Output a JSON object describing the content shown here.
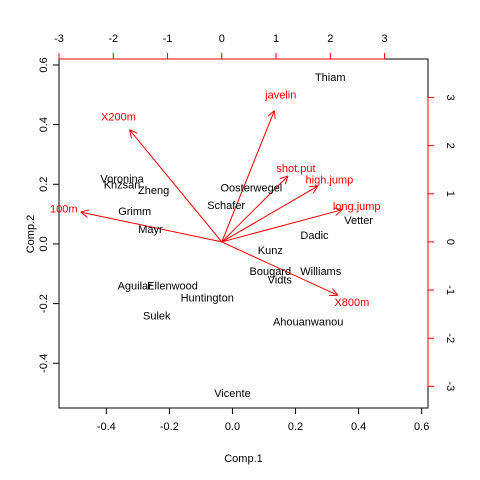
{
  "chart_data": {
    "type": "scatter",
    "subtype": "biplot",
    "title": "",
    "xlabel": "Comp.1",
    "ylabel": "Comp.2",
    "xlim": [
      -0.55,
      0.62
    ],
    "ylim": [
      -0.55,
      0.62
    ],
    "xticks": [
      -0.4,
      -0.2,
      0.0,
      0.2,
      0.4,
      0.6
    ],
    "yticks": [
      -0.4,
      -0.2,
      0.0,
      0.2,
      0.4,
      0.6
    ],
    "x_tick_labels": [
      "-0.4",
      "-0.2",
      "0.0",
      "0.2",
      "0.4",
      "0.6"
    ],
    "y_tick_labels": [
      "-0.4",
      "-0.2",
      "0.0",
      "0.2",
      "0.4",
      "0.6"
    ],
    "secondary_xlim": [
      -3.0,
      3.8
    ],
    "secondary_ylim": [
      -3.45,
      3.8
    ],
    "secondary_xticks": [
      -3,
      -2,
      -1,
      0,
      1,
      2,
      3
    ],
    "secondary_yticks": [
      -3,
      -2,
      -1,
      0,
      1,
      2,
      3
    ],
    "secondary_x_tick_labels": [
      "-3",
      "-2",
      "-1",
      "0",
      "1",
      "2",
      "3"
    ],
    "secondary_y_tick_labels": [
      "-3",
      "-2",
      "-1",
      "0",
      "1",
      "2",
      "3"
    ],
    "observations": [
      {
        "label": "Thiam",
        "x": 0.31,
        "y": 0.56
      },
      {
        "label": "Voronina",
        "x": -0.35,
        "y": 0.22
      },
      {
        "label": "Khzsan",
        "x": -0.35,
        "y": 0.2
      },
      {
        "label": "Zheng",
        "x": -0.25,
        "y": 0.18
      },
      {
        "label": "Oosterwegel",
        "x": 0.06,
        "y": 0.19
      },
      {
        "label": "Schafer",
        "x": -0.02,
        "y": 0.13
      },
      {
        "label": "Grimm",
        "x": -0.31,
        "y": 0.11
      },
      {
        "label": "Mayr",
        "x": -0.26,
        "y": 0.05
      },
      {
        "label": "Vetter",
        "x": 0.4,
        "y": 0.08
      },
      {
        "label": "Dadic",
        "x": 0.26,
        "y": 0.03
      },
      {
        "label": "Kunz",
        "x": 0.12,
        "y": -0.02
      },
      {
        "label": "Bougard",
        "x": 0.12,
        "y": -0.09
      },
      {
        "label": "Williams",
        "x": 0.28,
        "y": -0.09
      },
      {
        "label": "Vidts",
        "x": 0.15,
        "y": -0.12
      },
      {
        "label": "Aguilar",
        "x": -0.31,
        "y": -0.14
      },
      {
        "label": "Ellenwood",
        "x": -0.19,
        "y": -0.14
      },
      {
        "label": "Huntington",
        "x": -0.08,
        "y": -0.18
      },
      {
        "label": "Sulek",
        "x": -0.24,
        "y": -0.24
      },
      {
        "label": "Ahouanwanou",
        "x": 0.24,
        "y": -0.26
      },
      {
        "label": "Vicente",
        "x": 0.0,
        "y": -0.5
      }
    ],
    "variables": [
      {
        "label": "javelin",
        "x": 0.97,
        "y": 2.73
      },
      {
        "label": "X200m",
        "x": -1.7,
        "y": 2.33
      },
      {
        "label": "shot.put",
        "x": 1.22,
        "y": 1.37
      },
      {
        "label": "high.jump",
        "x": 1.77,
        "y": 1.16
      },
      {
        "label": "long.jump",
        "x": 2.22,
        "y": 0.67
      },
      {
        "label": "100m",
        "x": -2.6,
        "y": 0.62
      },
      {
        "label": "X800m",
        "x": 2.14,
        "y": -1.11
      }
    ],
    "colors": {
      "observations": "#000000",
      "variables": "#ff0000"
    },
    "grid": false,
    "legend": "none"
  }
}
